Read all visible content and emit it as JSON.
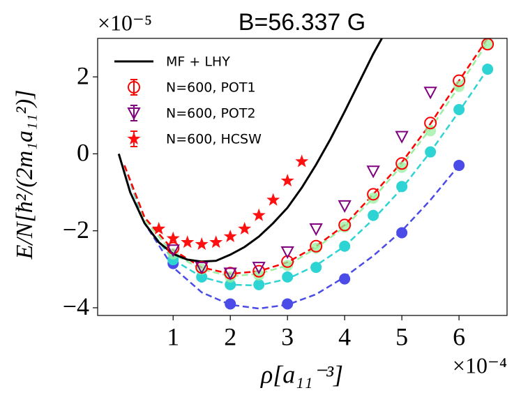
{
  "chart_data": {
    "type": "line",
    "title": "B=56.337 G",
    "y_multiplier": "×10⁻⁵",
    "x_multiplier": "×10⁻⁴",
    "ylabel": "E/N[ħ²/(2m₁a₁₁²)]",
    "xlabel": "ρ[a₁₁⁻³]",
    "xlim": [
      -0.32,
      6.84
    ],
    "ylim": [
      -4.2,
      3.0
    ],
    "xticks": [
      1,
      2,
      3,
      4,
      5,
      6
    ],
    "yticks": [
      {
        "value": -4,
        "label": "−4"
      },
      {
        "value": -2,
        "label": "−2"
      },
      0,
      2
    ],
    "legend": "upper left",
    "series": [
      {
        "color": "#4b4be8",
        "linestyle": "dashed",
        "marker": "none",
        "x": [
          0.15,
          0.5,
          1,
          1.5,
          2,
          2.5,
          3,
          3.5,
          4,
          4.5,
          5,
          5.5,
          6
        ],
        "values": [
          -0.3,
          -1.8,
          -2.95,
          -3.6,
          -3.92,
          -4.02,
          -3.92,
          -3.65,
          -3.2,
          -2.65,
          -2.0,
          -1.2,
          -0.3
        ]
      },
      {
        "color": "#2ed3d3",
        "linestyle": "dashed",
        "marker": "none",
        "x": [
          0.15,
          0.5,
          1,
          1.5,
          2,
          2.5,
          3,
          3.5,
          4,
          4.5,
          5,
          5.5,
          6,
          6.5
        ],
        "values": [
          -0.3,
          -1.8,
          -2.75,
          -3.2,
          -3.4,
          -3.42,
          -3.25,
          -2.9,
          -2.4,
          -1.7,
          -0.9,
          0.05,
          1.1,
          2.2
        ]
      },
      {
        "color": "#98f0a0",
        "linestyle": "dashed",
        "marker": "none",
        "x": [
          0.15,
          0.5,
          1,
          1.5,
          2,
          2.5,
          3,
          3.5,
          4,
          4.5,
          5,
          5.5,
          6,
          6.5
        ],
        "values": [
          -0.3,
          -1.7,
          -2.6,
          -3.0,
          -3.18,
          -3.12,
          -2.9,
          -2.45,
          -1.9,
          -1.15,
          -0.3,
          0.65,
          1.75,
          2.9
        ]
      },
      {
        "color": "#ff0000",
        "linestyle": "dashed",
        "marker": "none",
        "x": [
          0.15,
          0.5,
          1,
          1.5,
          2,
          2.5,
          3,
          3.5,
          4,
          4.5,
          5,
          5.5,
          6,
          6.5
        ],
        "values": [
          -0.3,
          -1.65,
          -2.5,
          -2.95,
          -3.12,
          -3.05,
          -2.82,
          -2.4,
          -1.85,
          -1.05,
          -0.22,
          0.78,
          1.9,
          3.0
        ]
      },
      {
        "color": "#4b4be8",
        "linestyle": "none",
        "marker": "circle-filled",
        "x": [
          1,
          2,
          3,
          4,
          5,
          6
        ],
        "values": [
          -2.85,
          -3.9,
          -3.9,
          -3.25,
          -2.05,
          -0.3
        ]
      },
      {
        "color": "#2ed3d3",
        "linestyle": "none",
        "marker": "circle-filled",
        "x": [
          1,
          1.5,
          2,
          2.5,
          3,
          3.5,
          4,
          4.5,
          5,
          5.5,
          6,
          6.5
        ],
        "values": [
          -2.75,
          -3.2,
          -3.4,
          -3.4,
          -3.2,
          -2.95,
          -2.4,
          -1.6,
          -0.85,
          0.05,
          1.15,
          2.2
        ]
      },
      {
        "color": "#98f0a0",
        "linestyle": "none",
        "marker": "circle-filled",
        "x": [
          1,
          1.5,
          2,
          2.5,
          3,
          3.5,
          4,
          4.5,
          5,
          5.5,
          6,
          6.5
        ],
        "values": [
          -2.6,
          -3.0,
          -3.2,
          -3.15,
          -2.9,
          -2.45,
          -1.9,
          -1.15,
          -0.35,
          0.6,
          1.75,
          2.85
        ]
      },
      {
        "name": "MF + LHY",
        "color": "#000000",
        "linestyle": "solid",
        "marker": "none",
        "x": [
          0.05,
          0.25,
          0.5,
          0.75,
          1.0,
          1.25,
          1.5,
          1.75,
          2.0,
          2.25,
          2.5,
          2.75,
          3.0,
          3.25,
          3.5,
          3.75,
          4.0,
          4.25,
          4.5,
          4.65
        ],
        "values": [
          0,
          -1.0,
          -1.8,
          -2.3,
          -2.6,
          -2.75,
          -2.8,
          -2.78,
          -2.62,
          -2.42,
          -2.15,
          -1.8,
          -1.4,
          -0.88,
          -0.28,
          0.38,
          1.1,
          1.85,
          2.6,
          3.0
        ]
      },
      {
        "name": "N=600, POT1",
        "color": "#ff0000",
        "linestyle": "none",
        "marker": "circle-open",
        "x": [
          1,
          1.5,
          2,
          2.5,
          3,
          3.5,
          4,
          4.5,
          5,
          5.5,
          6,
          6.5
        ],
        "values": [
          -2.45,
          -2.95,
          -3.1,
          -3.05,
          -2.8,
          -2.4,
          -1.85,
          -1.05,
          -0.25,
          0.8,
          1.9,
          2.85
        ]
      },
      {
        "name": "N=600, POT2",
        "color": "#800080",
        "linestyle": "none",
        "marker": "triangle-open",
        "x": [
          1,
          1.5,
          2,
          2.5,
          3,
          3.5,
          4,
          4.5,
          5,
          5.5
        ],
        "values": [
          -2.5,
          -2.95,
          -3.1,
          -2.95,
          -2.55,
          -1.95,
          -1.35,
          -0.45,
          0.45,
          1.6
        ]
      },
      {
        "name": "N=600, HCSW",
        "color": "#ff1010",
        "linestyle": "none",
        "marker": "star",
        "x": [
          0.75,
          1.0,
          1.25,
          1.5,
          1.75,
          2.0,
          2.25,
          2.5,
          2.75,
          3.0,
          3.25
        ],
        "values": [
          -1.95,
          -2.2,
          -2.3,
          -2.35,
          -2.3,
          -2.15,
          -1.95,
          -1.6,
          -1.2,
          -0.7,
          -0.2
        ]
      }
    ]
  }
}
